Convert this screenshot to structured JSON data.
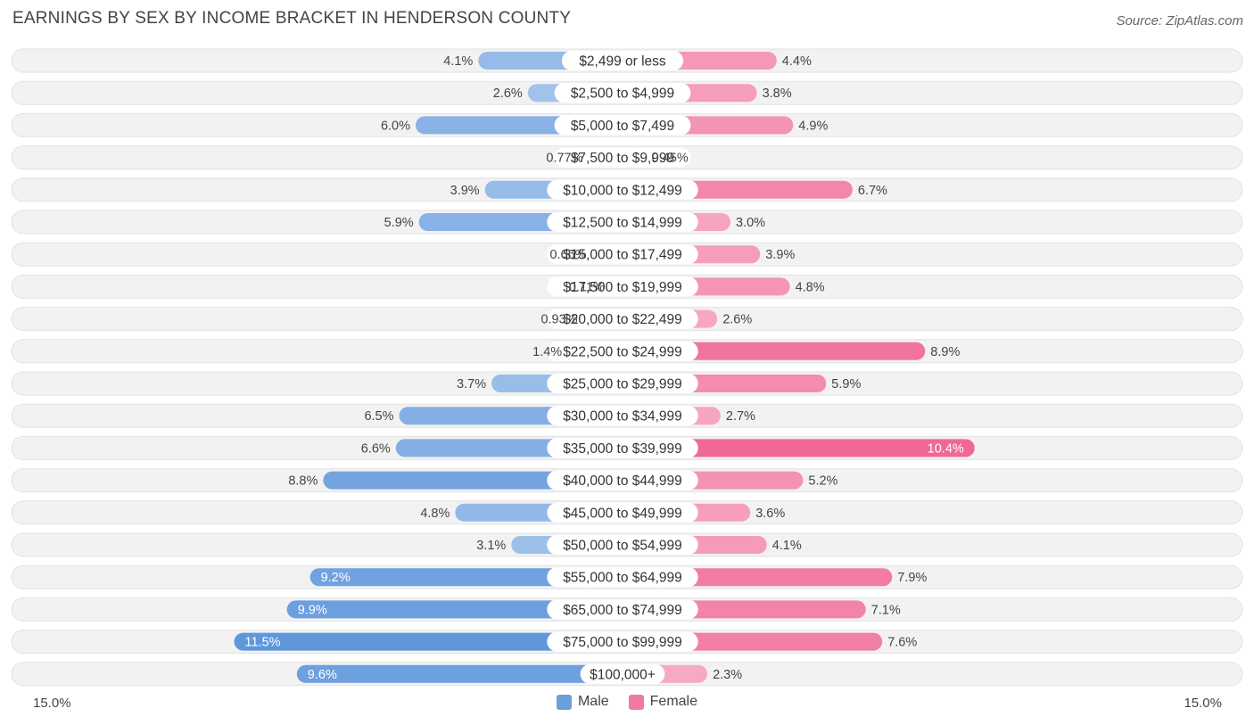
{
  "chart_data": {
    "type": "bar",
    "orientation": "horizontal-diverging",
    "title": "EARNINGS BY SEX BY INCOME BRACKET IN HENDERSON COUNTY",
    "source": "Source: ZipAtlas.com",
    "categories": [
      "$2,499 or less",
      "$2,500 to $4,999",
      "$5,000 to $7,499",
      "$7,500 to $9,999",
      "$10,000 to $12,499",
      "$12,500 to $14,999",
      "$15,000 to $17,499",
      "$17,500 to $19,999",
      "$20,000 to $22,499",
      "$22,500 to $24,999",
      "$25,000 to $29,999",
      "$30,000 to $34,999",
      "$35,000 to $39,999",
      "$40,000 to $44,999",
      "$45,000 to $49,999",
      "$50,000 to $54,999",
      "$55,000 to $64,999",
      "$65,000 to $74,999",
      "$75,000 to $99,999",
      "$100,000+"
    ],
    "series": [
      {
        "name": "Male",
        "color": "#6a9fdc",
        "values": [
          4.1,
          2.6,
          6.0,
          0.77,
          3.9,
          5.9,
          0.66,
          0.11,
          0.93,
          1.4,
          3.7,
          6.5,
          6.6,
          8.8,
          4.8,
          3.1,
          9.2,
          9.9,
          11.5,
          9.6
        ],
        "labels": [
          "4.1%",
          "2.6%",
          "6.0%",
          "0.77%",
          "3.9%",
          "5.9%",
          "0.66%",
          "0.11%",
          "0.93%",
          "1.4%",
          "3.7%",
          "6.5%",
          "6.6%",
          "8.8%",
          "4.8%",
          "3.1%",
          "9.2%",
          "9.9%",
          "11.5%",
          "9.6%"
        ]
      },
      {
        "name": "Female",
        "color": "#f07ba0",
        "values": [
          4.4,
          3.8,
          4.9,
          0.45,
          6.7,
          3.0,
          3.9,
          4.8,
          2.6,
          8.9,
          5.9,
          2.7,
          10.4,
          5.2,
          3.6,
          4.1,
          7.9,
          7.1,
          7.6,
          2.3
        ],
        "labels": [
          "4.4%",
          "3.8%",
          "4.9%",
          "0.45%",
          "6.7%",
          "3.0%",
          "3.9%",
          "4.8%",
          "2.6%",
          "8.9%",
          "5.9%",
          "2.7%",
          "10.4%",
          "5.2%",
          "3.6%",
          "4.1%",
          "7.9%",
          "7.1%",
          "7.6%",
          "2.3%"
        ]
      }
    ],
    "xlim": [
      -15.0,
      15.0
    ],
    "axis_left_label": "15.0%",
    "axis_right_label": "15.0%",
    "legend_position": "bottom-center"
  }
}
